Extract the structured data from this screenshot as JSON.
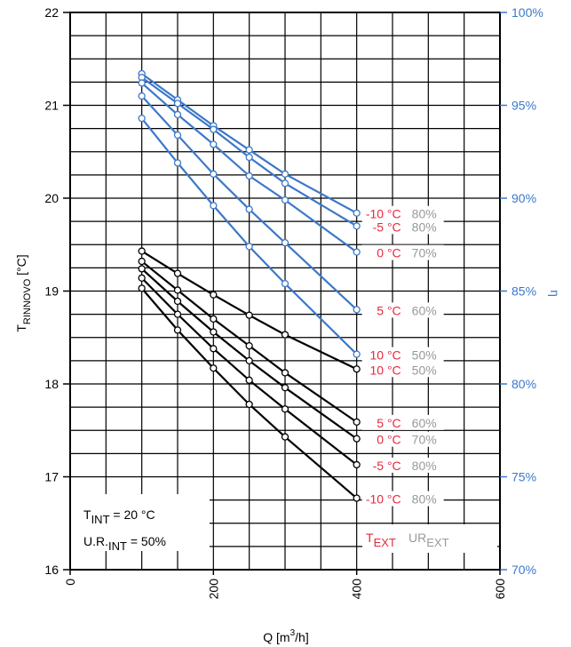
{
  "chart_data": {
    "type": "line",
    "xlabel": "Q [m³/h]",
    "xlabel_main": "Q [m",
    "xlabel_sup": "3",
    "xlabel_end": "/h]",
    "ylabel_main": "T",
    "ylabel_sub": "RINNOVO",
    "ylabel_end": " [°C]",
    "y2label": "η",
    "xlim": [
      0,
      600
    ],
    "ylim": [
      16,
      22
    ],
    "y2lim": [
      70,
      100
    ],
    "x_ticks": [
      "0",
      "200",
      "400",
      "600"
    ],
    "y_ticks": [
      "16",
      "17",
      "18",
      "19",
      "20",
      "21",
      "22"
    ],
    "y2_ticks": [
      "70%",
      "75%",
      "80%",
      "85%",
      "90%",
      "95%",
      "100%"
    ],
    "grid": true,
    "colors": {
      "temperature": "#000000",
      "efficiency": "#3c78c8",
      "text_ext": "#e8283c",
      "ur_ext": "#999999",
      "axis_right": "#3c78c8"
    },
    "x": [
      100,
      150,
      200,
      250,
      300,
      400
    ],
    "series": [
      {
        "axis": "T",
        "label_text": "-10 °C",
        "label_ur": "80%",
        "values": [
          19.03,
          18.58,
          18.17,
          17.78,
          17.43,
          16.77
        ]
      },
      {
        "axis": "T",
        "label_text": "-5 °C",
        "label_ur": "80%",
        "values": [
          19.14,
          18.75,
          18.38,
          18.04,
          17.73,
          17.13
        ]
      },
      {
        "axis": "T",
        "label_text": "0 °C",
        "label_ur": "70%",
        "values": [
          19.24,
          18.89,
          18.56,
          18.25,
          17.96,
          17.41
        ]
      },
      {
        "axis": "T",
        "label_text": "5 °C",
        "label_ur": "60%",
        "values": [
          19.32,
          19.01,
          18.7,
          18.41,
          18.12,
          17.59
        ]
      },
      {
        "axis": "T",
        "label_text": "10 °C",
        "label_ur": "50%",
        "values": [
          19.43,
          19.19,
          18.96,
          18.74,
          18.53,
          18.16
        ]
      },
      {
        "axis": "eta",
        "label_text": "-10 °C",
        "label_ur": "80%",
        "values": [
          96.7,
          95.3,
          93.9,
          92.6,
          91.3,
          89.2
        ]
      },
      {
        "axis": "eta",
        "label_text": "-5 °C",
        "label_ur": "80%",
        "values": [
          96.5,
          95.1,
          93.7,
          92.2,
          90.8,
          88.5
        ]
      },
      {
        "axis": "eta",
        "label_text": "0 °C",
        "label_ur": "70%",
        "values": [
          96.2,
          94.5,
          92.9,
          91.2,
          89.9,
          87.1
        ]
      },
      {
        "axis": "eta",
        "label_text": "5 °C",
        "label_ur": "60%",
        "values": [
          95.5,
          93.4,
          91.3,
          89.4,
          87.6,
          84.0
        ]
      },
      {
        "axis": "eta",
        "label_text": "10 °C",
        "label_ur": "50%",
        "values": [
          94.3,
          91.9,
          89.6,
          87.4,
          85.4,
          81.6
        ]
      }
    ],
    "annotation": {
      "line1_main": "T",
      "line1_sub": "INT",
      "line1_end": " = 20 °C",
      "line2_main": "U.R.",
      "line2_sub": "INT",
      "line2_end": " = 50%"
    },
    "legend": {
      "text_main": "T",
      "text_sub": "EXT",
      "ur_main": "UR",
      "ur_sub": "EXT"
    }
  }
}
